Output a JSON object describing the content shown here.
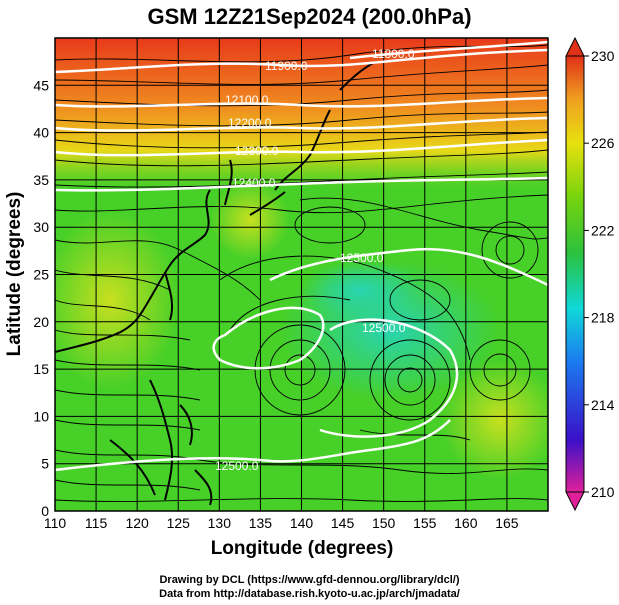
{
  "title": "GSM 12Z21Sep2024 (200.0hPa)",
  "xlabel": "Longitude (degrees)",
  "ylabel": "Latitude  (degrees)",
  "credits": [
    "Drawing by DCL (https://www.gfd-dennou.org/library/dcl/)",
    "Data from http://database.rish.kyoto-u.ac.jp/arch/jmadata/"
  ],
  "map": {
    "lon_range": [
      110,
      170
    ],
    "lat_range": [
      0,
      50
    ],
    "x_ticks": [
      "110",
      "115",
      "120",
      "125",
      "130",
      "135",
      "140",
      "145",
      "150",
      "155",
      "160",
      "165"
    ],
    "y_ticks": [
      "0",
      "5",
      "10",
      "15",
      "20",
      "25",
      "30",
      "35",
      "40",
      "45"
    ],
    "grid": true,
    "field": "temperature",
    "colorbar": {
      "min": 210,
      "max": 230,
      "ticks": [
        "230",
        "226",
        "222",
        "218",
        "214",
        "210"
      ],
      "colors": [
        "#e0209a",
        "#3a10c8",
        "#1a7cf0",
        "#10d8d8",
        "#2cc23c",
        "#7ad40c",
        "#e8e010",
        "#f0a020",
        "#e03018"
      ]
    },
    "contours": [
      {
        "label": "11900.0"
      },
      {
        "label": "11800.0"
      },
      {
        "label": "12100.0"
      },
      {
        "label": "12200.0"
      },
      {
        "label": "12300.0"
      },
      {
        "label": "12400.0"
      },
      {
        "label": "12500.0"
      },
      {
        "label": "12500.0"
      },
      {
        "label": "12500.0"
      }
    ]
  }
}
